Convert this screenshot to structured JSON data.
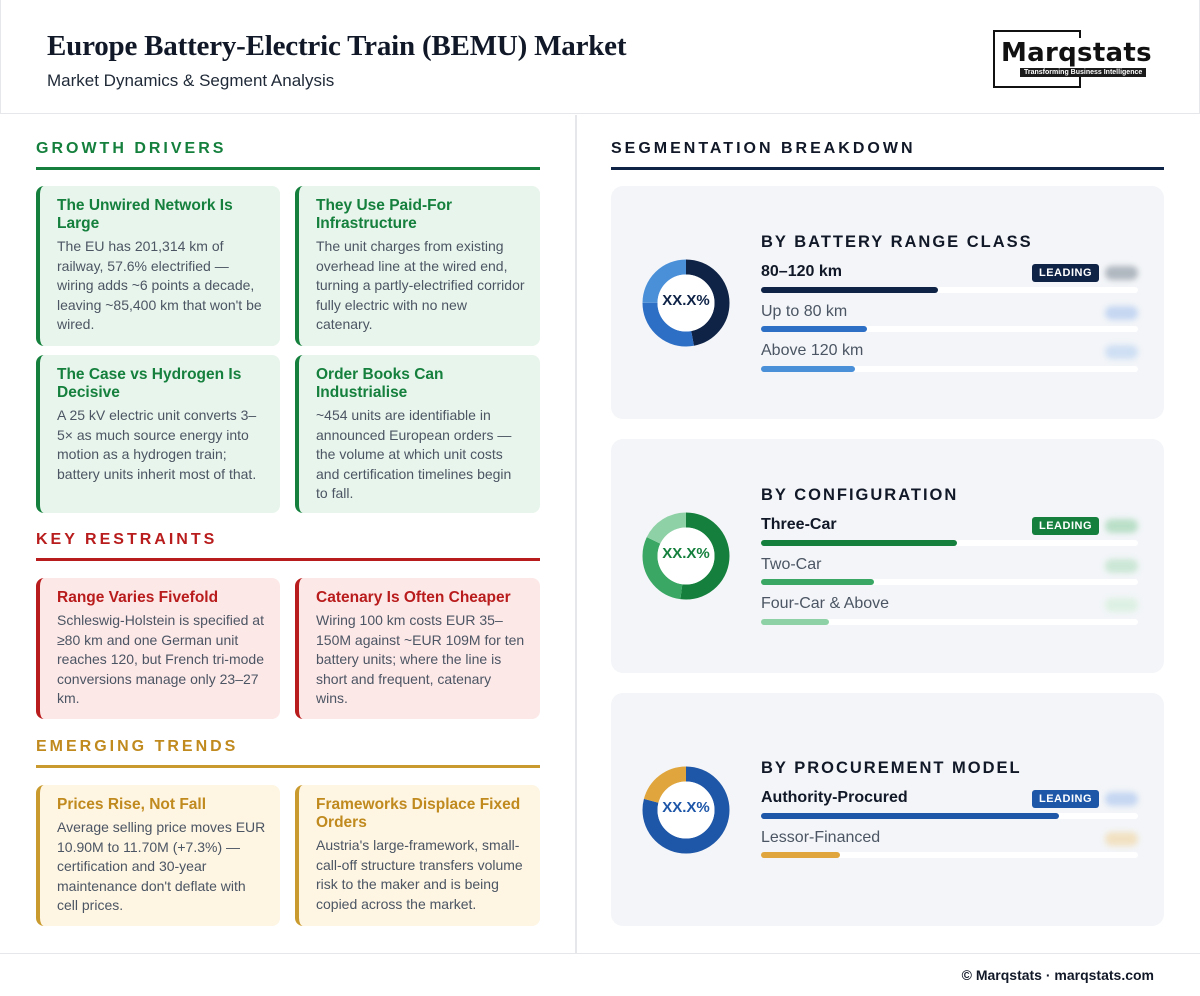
{
  "header": {
    "title": "Europe Battery-Electric Train (BEMU) Market",
    "subtitle": "Market Dynamics & Segment Analysis",
    "logo_text": "Marqstats",
    "logo_tagline": "Transforming Business Intelligence"
  },
  "growth_drivers": {
    "title": "GROWTH DRIVERS",
    "cards": [
      {
        "title": "The Unwired Network Is Large",
        "body": "The EU has 201,314 km of railway, 57.6% electrified — wiring adds ~6 points a decade, leaving ~85,400 km that won't be wired."
      },
      {
        "title": "They Use Paid-For Infrastructure",
        "body": "The unit charges from existing overhead line at the wired end, turning a partly-electrified corridor fully electric with no new catenary."
      },
      {
        "title": "The Case vs Hydrogen Is Decisive",
        "body": "A 25 kV electric unit converts 3–5× as much source energy into motion as a hydrogen train; battery units inherit most of that."
      },
      {
        "title": "Order Books Can Industrialise",
        "body": "~454 units are identifiable in announced European orders — the volume at which unit costs and certification timelines begin to fall."
      }
    ]
  },
  "key_restraints": {
    "title": "KEY RESTRAINTS",
    "cards": [
      {
        "title": "Range Varies Fivefold",
        "body": "Schleswig-Holstein is specified at ≥80 km and one German unit reaches 120, but French tri-mode conversions manage only 23–27 km."
      },
      {
        "title": "Catenary Is Often Cheaper",
        "body": "Wiring 100 km costs EUR 35–150M against ~EUR 109M for ten battery units; where the line is short and frequent, catenary wins."
      }
    ]
  },
  "emerging_trends": {
    "title": "EMERGING TRENDS",
    "cards": [
      {
        "title": "Prices Rise, Not Fall",
        "body": "Average selling price moves EUR 10.90M to 11.70M (+7.3%) — certification and 30-year maintenance don't deflate with cell prices."
      },
      {
        "title": "Frameworks Displace Fixed Orders",
        "body": "Austria's large-framework, small-call-off structure transfers volume risk to the maker and is being copied across the market."
      }
    ]
  },
  "segmentation": {
    "title": "SEGMENTATION BREAKDOWN",
    "leading_label": "LEADING",
    "panels": [
      {
        "title": "BY BATTERY RANGE CLASS",
        "center_label": "XX.X%",
        "segments": [
          {
            "label": "80–120 km",
            "share": 0.47,
            "color": "#0f2347",
            "leading": true
          },
          {
            "label": "Up to 80 km",
            "share": 0.28,
            "color": "#2e6fc6",
            "leading": false
          },
          {
            "label": "Above 120 km",
            "share": 0.25,
            "color": "#4a90d9",
            "leading": false
          }
        ]
      },
      {
        "title": "BY CONFIGURATION",
        "center_label": "XX.X%",
        "segments": [
          {
            "label": "Three-Car",
            "share": 0.52,
            "color": "#15803d",
            "leading": true
          },
          {
            "label": "Two-Car",
            "share": 0.3,
            "color": "#3aa864",
            "leading": false
          },
          {
            "label": "Four-Car & Above",
            "share": 0.18,
            "color": "#8fd1a6",
            "leading": false
          }
        ]
      },
      {
        "title": "BY PROCUREMENT MODEL",
        "center_label": "XX.X%",
        "segments": [
          {
            "label": "Authority-Procured",
            "share": 0.79,
            "color": "#1e56a8",
            "leading": true
          },
          {
            "label": "Lessor-Financed",
            "share": 0.21,
            "color": "#e0a53c",
            "leading": false
          }
        ]
      }
    ]
  },
  "footer": {
    "text": "© Marqstats · marqstats.com"
  }
}
